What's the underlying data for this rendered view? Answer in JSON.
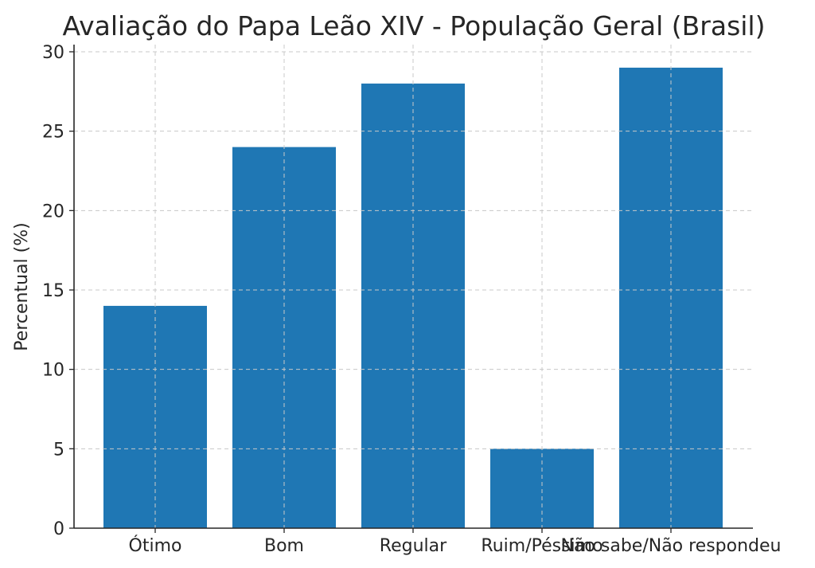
{
  "chart_data": {
    "type": "bar",
    "title": "Avaliação do Papa Leão XIV - População Geral (Brasil)",
    "xlabel": "",
    "ylabel": "Percentual (%)",
    "categories": [
      "Ótimo",
      "Bom",
      "Regular",
      "Ruim/Péssimo",
      "Não sabe/Não respondeu"
    ],
    "values": [
      14,
      24,
      28,
      5,
      29
    ],
    "ylim": [
      0,
      30
    ],
    "yticks": [
      "0",
      "5",
      "10",
      "15",
      "20",
      "25",
      "30"
    ],
    "grid": true,
    "bar_color": "#1f77b4"
  }
}
